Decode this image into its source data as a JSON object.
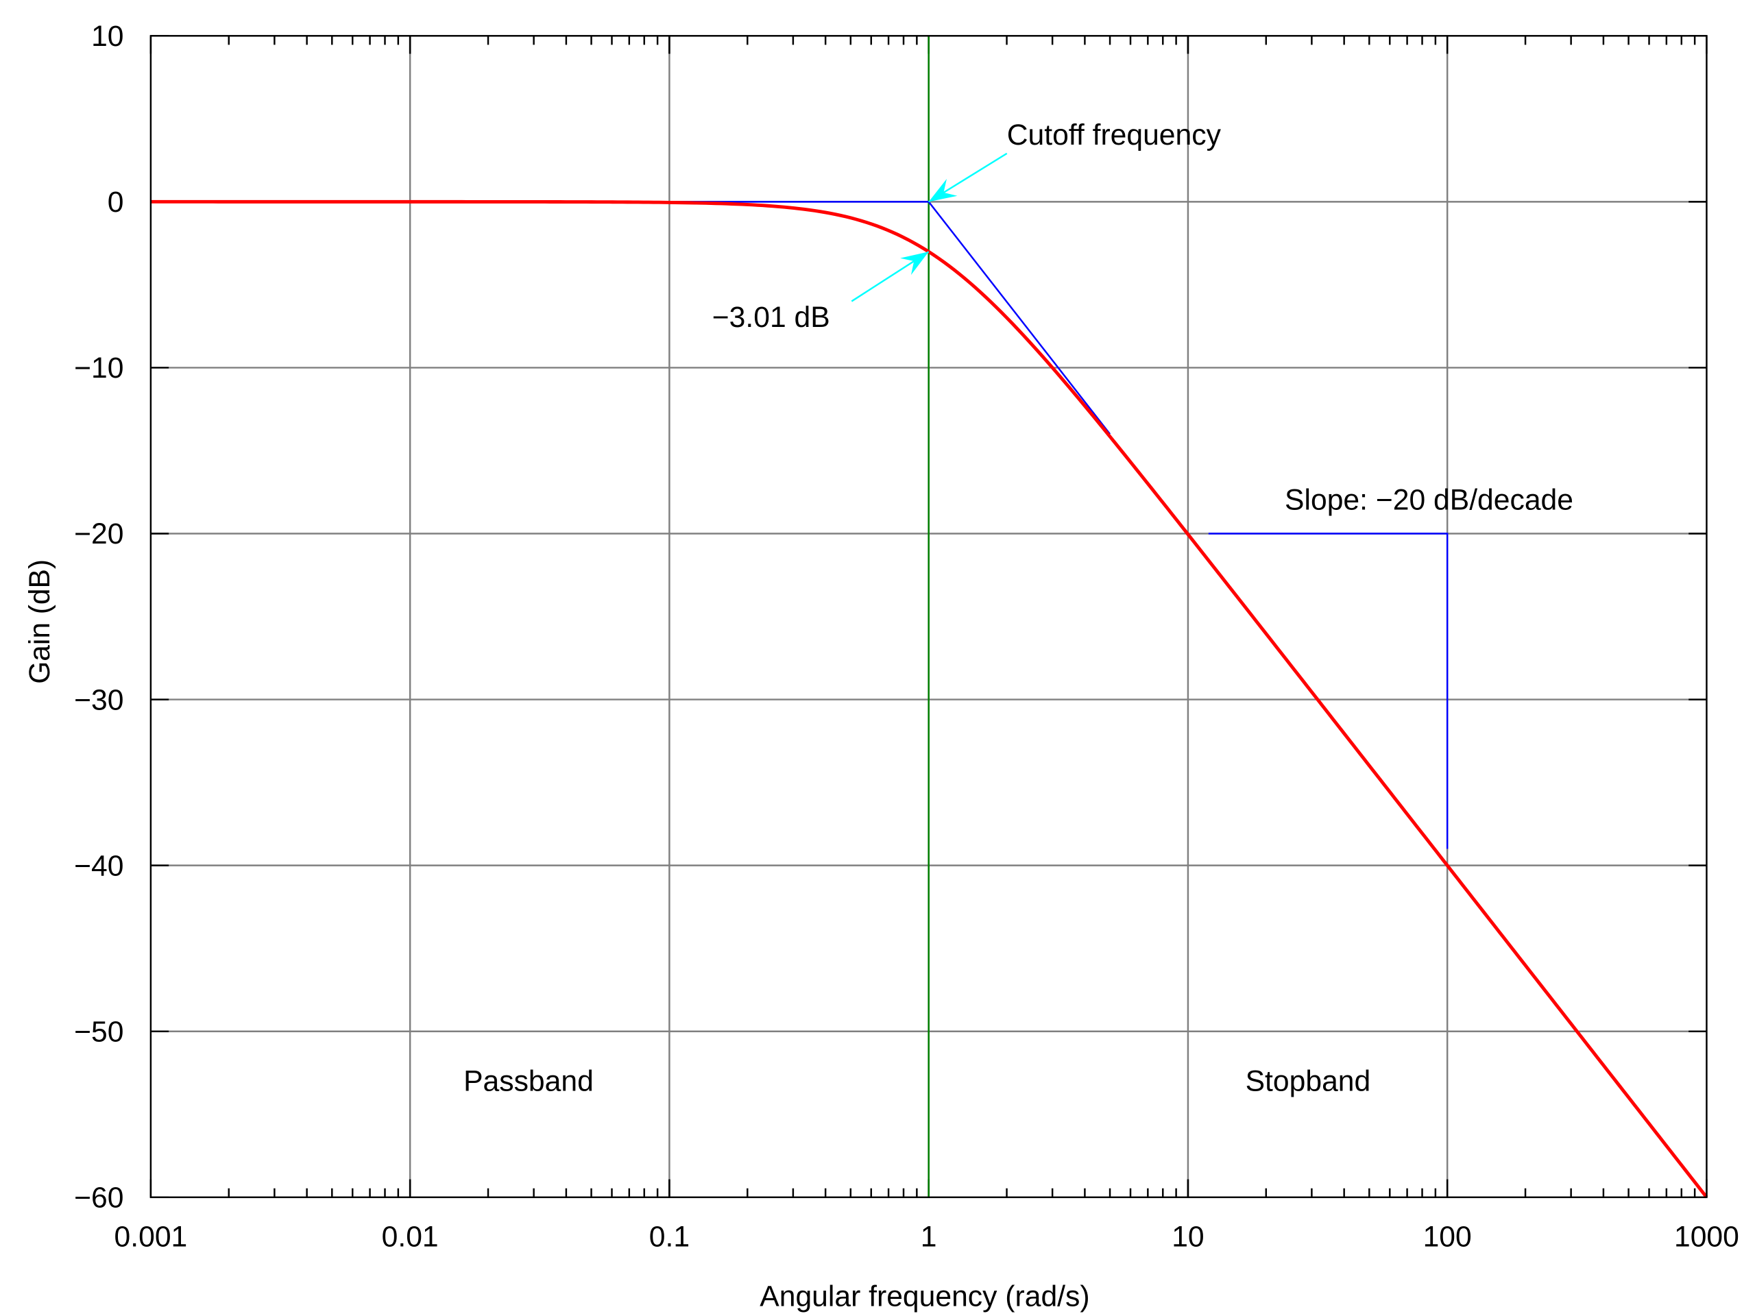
{
  "chart_data": {
    "type": "line",
    "xlabel": "Angular frequency (rad/s)",
    "ylabel": "Gain (dB)",
    "xscale": "log",
    "xlim": [
      0.001,
      1000
    ],
    "ylim": [
      -60,
      10
    ],
    "grid": true,
    "x_ticks": [
      0.001,
      0.01,
      0.1,
      1,
      10,
      100,
      1000
    ],
    "x_tick_labels": [
      "0.001",
      "0.01",
      "0.1",
      "1",
      "10",
      "100",
      "1000"
    ],
    "y_ticks": [
      10,
      0,
      -10,
      -20,
      -30,
      -40,
      -50,
      -60
    ],
    "y_tick_labels": [
      "10",
      "0",
      "−10",
      "−20",
      "−30",
      "−40",
      "−50",
      "−60"
    ],
    "series": [
      {
        "function": "gain_db = -10*log10(1 + w^2)",
        "color": "#ff0000",
        "x": [
          0.001,
          0.01,
          0.1,
          0.5,
          1,
          2,
          5,
          10,
          100,
          1000
        ],
        "y": [
          0,
          0,
          -0.04,
          -0.97,
          -3.01,
          -6.99,
          -14.15,
          -20.04,
          -40.0,
          -60.0
        ]
      },
      {
        "color": "#0000ff",
        "x": [
          0.1,
          1,
          5
        ],
        "y": [
          0,
          0,
          -14
        ]
      }
    ],
    "cutoff_line": {
      "x": 1,
      "color": "#008000"
    },
    "slope_triangle": {
      "x": [
        12,
        100,
        100
      ],
      "y": [
        -20,
        -20,
        -39
      ],
      "color": "#0000ff"
    },
    "annotations": [
      {
        "text": "Cutoff frequency",
        "arrow_to": [
          1,
          0
        ],
        "color": "#00ffff"
      },
      {
        "text": "−3.01 dB",
        "arrow_to": [
          1,
          -3.01
        ],
        "color": "#00ffff"
      },
      {
        "text": "Slope: −20 dB/decade"
      },
      {
        "text": "Passband"
      },
      {
        "text": "Stopband"
      }
    ]
  }
}
